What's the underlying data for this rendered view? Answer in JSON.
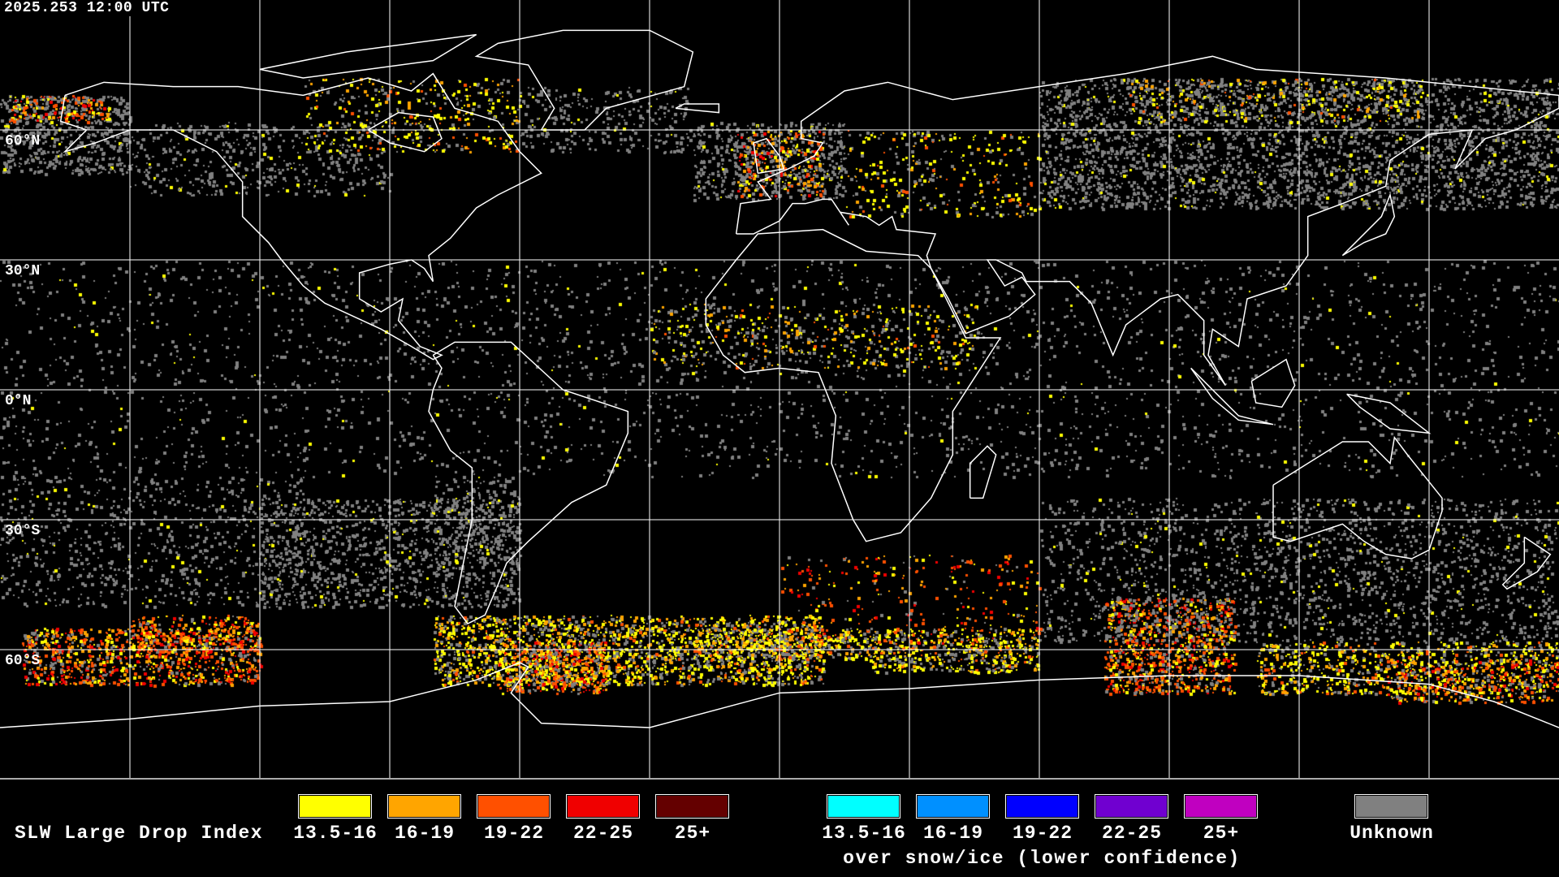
{
  "header": {
    "timestamp": "2025.253 12:00 UTC"
  },
  "map": {
    "projection": "equirectangular",
    "grid_interval_deg": 30,
    "lat_labels": [
      "60°N",
      "30°N",
      "0°N",
      "30°S",
      "60°S"
    ],
    "colors": {
      "coastline": "#ffffff",
      "grid": "#ffffff",
      "background": "#000000"
    }
  },
  "legend": {
    "title": "SLW Large Drop Index",
    "liquid": [
      {
        "label": "13.5-16",
        "color": "#ffff00"
      },
      {
        "label": "16-19",
        "color": "#ffa500"
      },
      {
        "label": "19-22",
        "color": "#ff5000"
      },
      {
        "label": "22-25",
        "color": "#f00000"
      },
      {
        "label": "25+",
        "color": "#640000"
      }
    ],
    "snow_ice": [
      {
        "label": "13.5-16",
        "color": "#00ffff"
      },
      {
        "label": "16-19",
        "color": "#0090ff"
      },
      {
        "label": "19-22",
        "color": "#0000ff"
      },
      {
        "label": "22-25",
        "color": "#7000d0"
      },
      {
        "label": "25+",
        "color": "#c000c0"
      }
    ],
    "snow_ice_caption": "over snow/ice (lower confidence)",
    "unknown": {
      "label": "Unknown",
      "color": "#808080"
    }
  }
}
